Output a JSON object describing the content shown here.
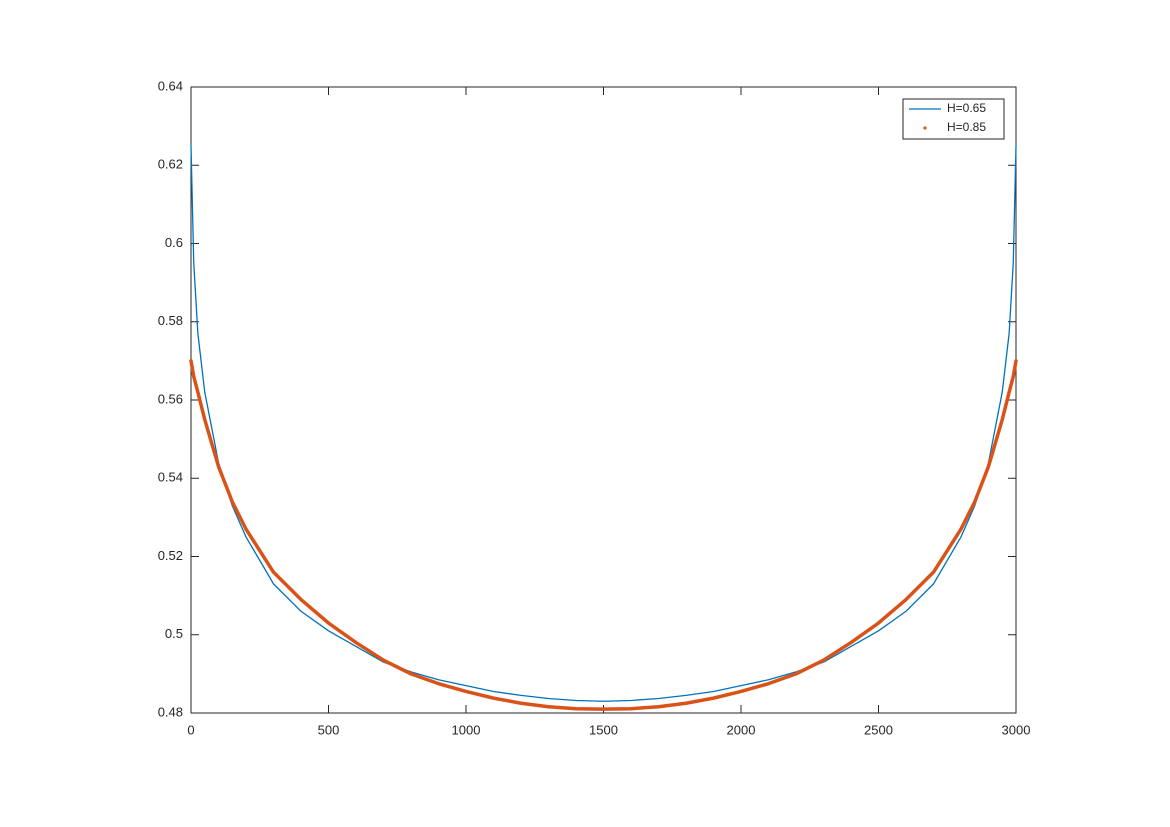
{
  "chart_data": {
    "type": "line",
    "x": [
      0,
      10,
      25,
      50,
      100,
      150,
      200,
      300,
      400,
      500,
      600,
      700,
      800,
      900,
      1000,
      1100,
      1200,
      1300,
      1400,
      1500,
      1600,
      1700,
      1800,
      1900,
      2000,
      2100,
      2200,
      2300,
      2400,
      2500,
      2600,
      2700,
      2800,
      2850,
      2900,
      2950,
      2975,
      2990,
      3000
    ],
    "series": [
      {
        "name": "H=0.65",
        "color": "#0072bd",
        "style": "line",
        "values": [
          0.625,
          0.595,
          0.577,
          0.562,
          0.544,
          0.533,
          0.525,
          0.513,
          0.506,
          0.501,
          0.497,
          0.493,
          0.4905,
          0.4885,
          0.487,
          0.4855,
          0.4845,
          0.4837,
          0.4832,
          0.483,
          0.4832,
          0.4837,
          0.4845,
          0.4855,
          0.487,
          0.4885,
          0.4905,
          0.493,
          0.497,
          0.501,
          0.506,
          0.513,
          0.525,
          0.533,
          0.544,
          0.562,
          0.577,
          0.595,
          0.625
        ]
      },
      {
        "name": "H=0.85",
        "color": "#d95319",
        "style": "markers",
        "values": [
          0.57,
          0.566,
          0.562,
          0.555,
          0.543,
          0.534,
          0.527,
          0.516,
          0.509,
          0.503,
          0.498,
          0.4935,
          0.49,
          0.4875,
          0.4855,
          0.4838,
          0.4825,
          0.4816,
          0.4811,
          0.481,
          0.4811,
          0.4816,
          0.4825,
          0.4838,
          0.4855,
          0.4875,
          0.49,
          0.4935,
          0.498,
          0.503,
          0.509,
          0.516,
          0.527,
          0.534,
          0.543,
          0.555,
          0.562,
          0.566,
          0.57
        ]
      }
    ],
    "xlim": [
      0,
      3000
    ],
    "xticks": [
      0,
      500,
      1000,
      1500,
      2000,
      2500,
      3000
    ],
    "ylim": [
      0.48,
      0.64
    ],
    "yticks": [
      0.48,
      0.5,
      0.52,
      0.54,
      0.56,
      0.58,
      0.6,
      0.62,
      0.64
    ],
    "grid": false,
    "legend": "northeast"
  }
}
